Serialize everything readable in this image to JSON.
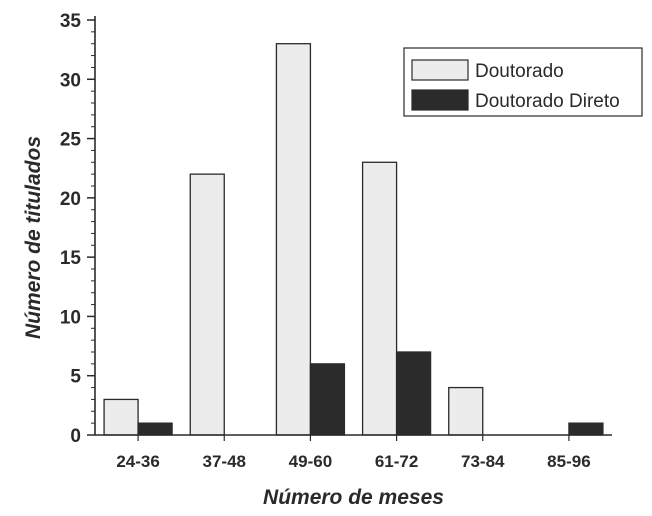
{
  "chart_data": {
    "type": "bar",
    "title": "",
    "xlabel": "Número de meses",
    "ylabel": "Número de titulados",
    "categories": [
      "24-36",
      "37-48",
      "49-60",
      "61-72",
      "73-84",
      "85-96"
    ],
    "series": [
      {
        "name": "Doutorado",
        "values": [
          3,
          22,
          33,
          23,
          4,
          0
        ],
        "color": "#ececec"
      },
      {
        "name": "Doutorado Direto",
        "values": [
          1,
          0,
          6,
          7,
          0,
          1
        ],
        "color": "#2b2b2b"
      }
    ],
    "ylim": [
      0,
      35
    ],
    "yticks": [
      0,
      5,
      10,
      15,
      20,
      25,
      30,
      35
    ],
    "grid": false,
    "legend_position": "top-right"
  }
}
